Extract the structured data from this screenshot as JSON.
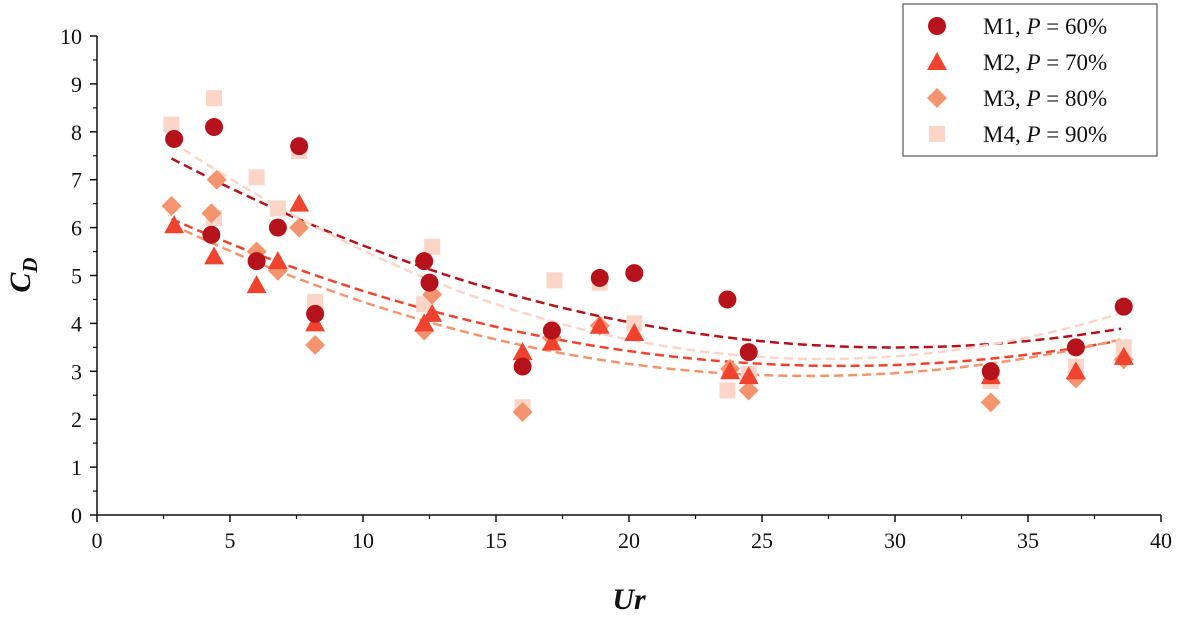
{
  "chart_data": {
    "type": "scatter",
    "xlabel": "Ur",
    "ylabel_main": "C",
    "ylabel_sub": "D",
    "xlim": [
      0,
      40
    ],
    "ylim": [
      0,
      10
    ],
    "xticks": [
      0,
      5,
      10,
      15,
      20,
      25,
      30,
      35,
      40
    ],
    "yticks": [
      0,
      1,
      2,
      3,
      4,
      5,
      6,
      7,
      8,
      9,
      10
    ],
    "grid": false,
    "legend_position": "top-right",
    "series": [
      {
        "name_prefix": "M1, ",
        "name_var": "P",
        "name_suffix": " = 60%",
        "marker": "circle",
        "color": "#b5121b",
        "x": [
          2.9,
          4.4,
          4.3,
          6.0,
          6.8,
          7.6,
          8.2,
          12.3,
          12.5,
          16.0,
          17.1,
          18.9,
          20.2,
          23.7,
          24.5,
          33.6,
          36.8,
          38.6
        ],
        "y": [
          7.85,
          8.1,
          5.85,
          5.3,
          6.0,
          7.7,
          4.2,
          5.3,
          4.85,
          3.1,
          3.85,
          4.95,
          5.05,
          4.5,
          3.4,
          3.0,
          3.5,
          4.35
        ],
        "fit": [
          8.3,
          -0.3209,
          0.00536
        ]
      },
      {
        "name_prefix": "M2, ",
        "name_var": "P",
        "name_suffix": " = 70%",
        "marker": "triangle",
        "color": "#f0432f",
        "x": [
          2.9,
          4.4,
          6.0,
          6.8,
          7.6,
          8.2,
          12.3,
          12.6,
          16.0,
          17.1,
          18.9,
          20.2,
          23.8,
          24.5,
          33.6,
          36.8,
          38.6
        ],
        "y": [
          6.05,
          5.4,
          4.8,
          5.3,
          6.5,
          4.0,
          4.0,
          4.2,
          3.4,
          3.6,
          3.95,
          3.8,
          3.0,
          2.9,
          2.9,
          3.0,
          3.3
        ],
        "fit": [
          6.9,
          -0.2705,
          0.00483
        ]
      },
      {
        "name_prefix": "M3, ",
        "name_var": "P",
        "name_suffix": " = 80%",
        "marker": "diamond",
        "color": "#f4946f",
        "x": [
          2.8,
          4.3,
          4.5,
          6.0,
          6.8,
          7.6,
          8.2,
          12.3,
          12.6,
          16.0,
          17.1,
          18.9,
          23.8,
          24.5,
          33.6,
          36.8,
          38.6
        ],
        "y": [
          6.45,
          6.3,
          7.0,
          5.5,
          5.1,
          6.0,
          3.55,
          3.85,
          4.6,
          2.15,
          3.7,
          3.95,
          3.05,
          2.6,
          2.35,
          2.85,
          3.25
        ],
        "fit": [
          6.85,
          -0.2952,
          0.00552
        ]
      },
      {
        "name_prefix": "M4, ",
        "name_var": "P",
        "name_suffix": " = 90%",
        "marker": "square",
        "color": "#fbd6c8",
        "x": [
          2.8,
          4.4,
          4.4,
          6.0,
          6.8,
          7.6,
          8.2,
          12.3,
          12.6,
          16.0,
          17.2,
          18.9,
          20.2,
          23.7,
          24.5,
          33.6,
          36.8,
          38.6
        ],
        "y": [
          8.15,
          8.7,
          6.2,
          7.05,
          6.4,
          7.6,
          4.45,
          4.4,
          5.6,
          2.25,
          4.9,
          4.85,
          4.0,
          2.6,
          2.95,
          2.8,
          3.1,
          3.5
        ],
        "fit": [
          8.9,
          -0.4136,
          0.00758
        ]
      }
    ]
  }
}
